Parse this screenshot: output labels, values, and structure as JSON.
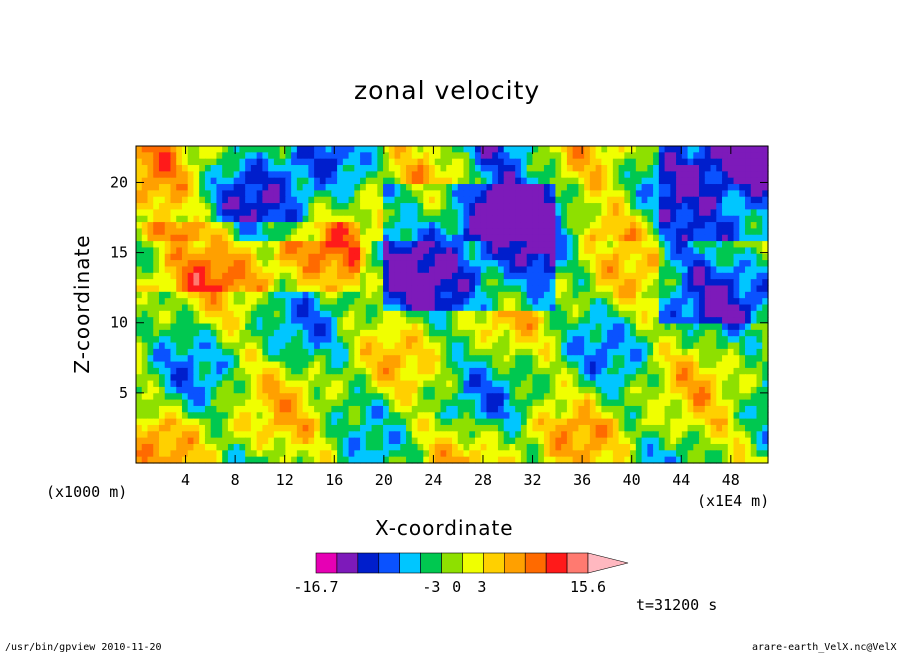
{
  "chart_data": {
    "type": "heatmap",
    "title": "zonal velocity",
    "xlabel": "X-coordinate",
    "ylabel": "Z-coordinate",
    "x_unit": "(x1E4 m)",
    "y_unit": "(x1000 m)",
    "xlim": [
      0,
      51
    ],
    "ylim": [
      0,
      22.6
    ],
    "x_ticks": [
      4,
      8,
      12,
      16,
      20,
      24,
      28,
      32,
      36,
      40,
      44,
      48
    ],
    "y_ticks": [
      5,
      10,
      15,
      20
    ],
    "colorbar": {
      "min": -16.7,
      "max": 15.6,
      "labels": [
        "-16.7",
        "-3",
        "0",
        "3",
        "15.6"
      ],
      "colors": [
        "#e600b4",
        "#7d1aba",
        "#001ecc",
        "#0a52ff",
        "#00c6ff",
        "#00c850",
        "#8ee000",
        "#f0ff00",
        "#ffd000",
        "#ffa000",
        "#ff6a00",
        "#ff1a1a",
        "#ff7a70",
        "#ffb8c0"
      ]
    },
    "time_label": "t=31200 s",
    "grid": false
  },
  "footer": {
    "left": "/usr/bin/gpview  2010-11-20",
    "right": "arare-earth_VelX.nc@VelX"
  }
}
